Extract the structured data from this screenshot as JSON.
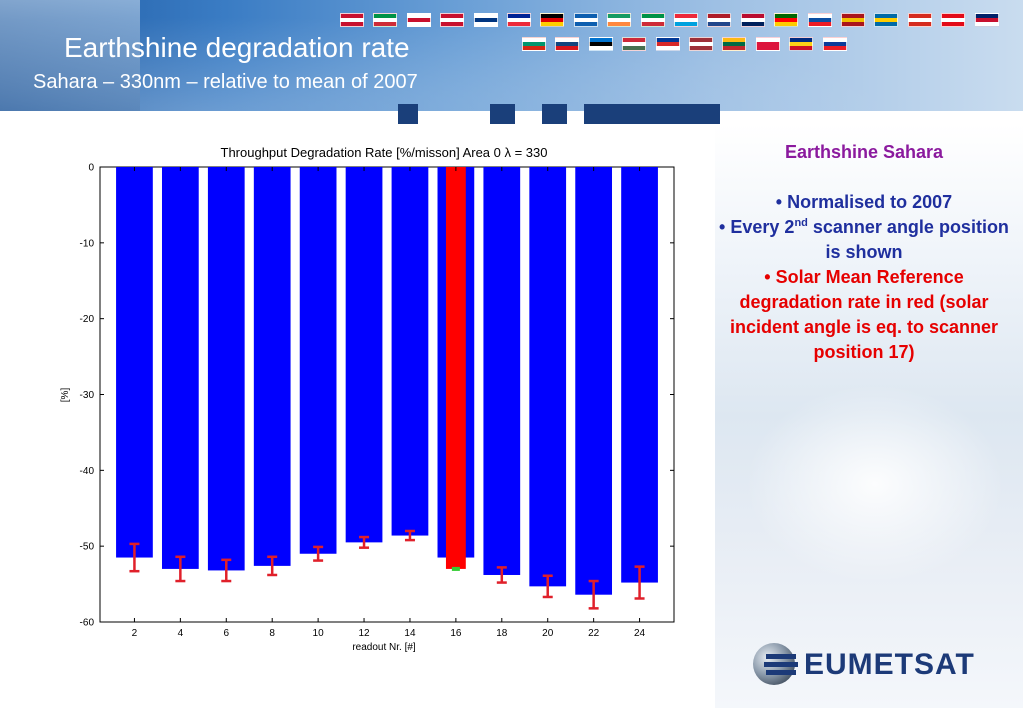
{
  "slide": {
    "title": "Earthshine degradation rate",
    "subtitle": "Sahara – 330nm – relative to mean of 2007"
  },
  "side_panel": {
    "heading": "Earthshine Sahara",
    "bullet1": "Normalised to 2007",
    "bullet2_pre": "Every 2",
    "bullet2_sup": "nd",
    "bullet2_post": " scanner angle position is shown",
    "bullet3": "Solar Mean Reference degradation rate in red (solar incident angle is eq. to scanner position 17)",
    "bullet_char": "•"
  },
  "logo": {
    "text": "EUMETSAT"
  },
  "colors": {
    "bar": "#0000ff",
    "highlight_bar": "#ff0000",
    "error_bar": "#e0202a",
    "marker": "#33cc33",
    "title_heading": "#8b1a9e",
    "text_blue": "#1f2f9e",
    "text_red": "#e60000"
  },
  "chart_data": {
    "type": "bar",
    "title": "Throughput Degradation Rate [%/misson] Area 0 λ = 330",
    "xlabel": "readout Nr. [#]",
    "ylabel": "[%]",
    "ylim": [
      -60,
      0
    ],
    "yticks": [
      0,
      -10,
      -20,
      -30,
      -40,
      -50,
      -60
    ],
    "categories": [
      "2",
      "4",
      "6",
      "8",
      "10",
      "12",
      "14",
      "16",
      "18",
      "20",
      "22",
      "24"
    ],
    "values": [
      -51.5,
      -53.0,
      -53.2,
      -52.6,
      -51.0,
      -49.5,
      -48.6,
      -51.5,
      -53.8,
      -55.3,
      -56.4,
      -54.8
    ],
    "error_centers": [
      -51.5,
      -53.0,
      -53.2,
      -52.6,
      -51.0,
      -49.5,
      -48.6,
      null,
      -53.8,
      -55.3,
      -56.4,
      -54.8
    ],
    "errors": [
      1.8,
      1.6,
      1.4,
      1.2,
      0.9,
      0.7,
      0.6,
      null,
      1.0,
      1.4,
      1.8,
      2.1
    ],
    "highlight": {
      "category": "16",
      "value": -53.0,
      "marker_value": -53.0
    },
    "grid": false
  }
}
